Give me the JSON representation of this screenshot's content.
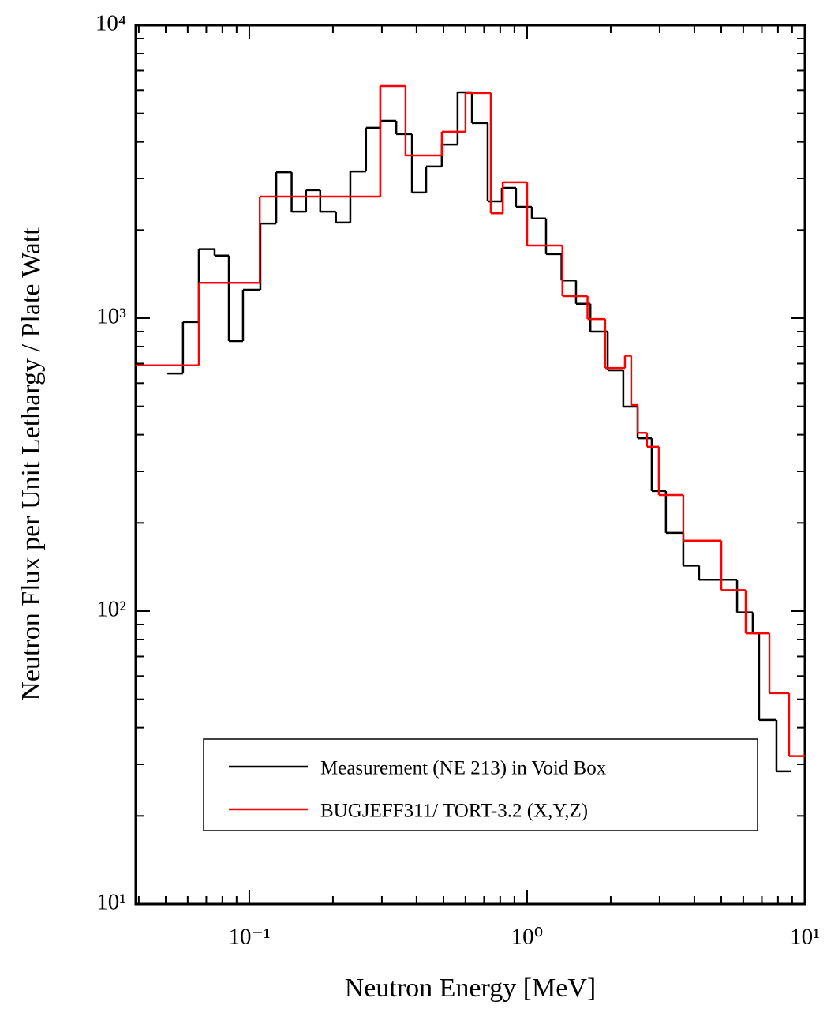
{
  "chart_data": {
    "type": "step",
    "xlabel": "Neutron Energy [MeV]",
    "ylabel": "Neutron Flux per Unit Lethargy / Plate Watt",
    "xscale": "log",
    "yscale": "log",
    "xlim": [
      0.039,
      10
    ],
    "ylim": [
      10,
      10000
    ],
    "xticks": [
      {
        "value": 0.1,
        "label": "10⁻¹"
      },
      {
        "value": 1,
        "label": "10⁰"
      },
      {
        "value": 10,
        "label": "10¹"
      }
    ],
    "yticks": [
      {
        "value": 10,
        "label": "10¹"
      },
      {
        "value": 100,
        "label": "10²"
      },
      {
        "value": 1000,
        "label": "10³"
      },
      {
        "value": 10000,
        "label": "10⁴"
      }
    ],
    "xminorticks": [
      0.04,
      0.05,
      0.06,
      0.07,
      0.08,
      0.09,
      0.2,
      0.3,
      0.4,
      0.5,
      0.6,
      0.7,
      0.8,
      0.9,
      2,
      3,
      4,
      5,
      6,
      7,
      8,
      9
    ],
    "yminorticks": [
      20,
      30,
      40,
      50,
      60,
      70,
      80,
      90,
      200,
      300,
      400,
      500,
      600,
      700,
      800,
      900,
      2000,
      3000,
      4000,
      5000,
      6000,
      7000,
      8000,
      9000
    ],
    "legend": "lower center",
    "series": [
      {
        "name": "Measurement (NE 213) in Void Box",
        "color": "#000000",
        "bins": [
          0.0507,
          0.0577,
          0.0658,
          0.075,
          0.0844,
          0.0949,
          0.1096,
          0.125,
          0.142,
          0.16,
          0.18,
          0.205,
          0.231,
          0.263,
          0.296,
          0.338,
          0.385,
          0.433,
          0.493,
          0.562,
          0.633,
          0.721,
          0.811,
          0.912,
          1.04,
          1.17,
          1.33,
          1.5,
          1.69,
          1.95,
          2.22,
          2.5,
          2.81,
          3.16,
          3.65,
          4.16,
          5.7,
          6.49,
          6.84,
          7.9,
          8.89
        ],
        "values": [
          647,
          970,
          1720,
          1635,
          835,
          1250,
          2105,
          3150,
          2310,
          2735,
          2310,
          2120,
          3170,
          4465,
          4720,
          4250,
          2685,
          3295,
          3915,
          5900,
          4635,
          2505,
          2785,
          2400,
          2190,
          1655,
          1345,
          1120,
          900,
          664,
          499,
          389,
          257,
          185,
          143,
          128,
          99,
          84,
          42.5,
          28.4
        ]
      },
      {
        "name": "BUGJEFF311/ TORT-3.2 (X,Y,Z)",
        "color": "#ff0000",
        "bins": [
          0.039,
          0.0658,
          0.109,
          0.296,
          0.365,
          0.493,
          0.6,
          0.74,
          0.817,
          1.0,
          1.34,
          1.65,
          1.91,
          2.25,
          2.37,
          2.5,
          2.7,
          2.98,
          3.65,
          5.0,
          6.12,
          7.45,
          8.77,
          10
        ],
        "values": [
          690,
          1320,
          2600,
          6200,
          3590,
          4330,
          5870,
          2280,
          2910,
          1770,
          1190,
          993,
          676,
          745,
          505,
          406,
          364,
          249,
          174,
          118,
          84,
          52.5,
          32
        ]
      }
    ]
  }
}
